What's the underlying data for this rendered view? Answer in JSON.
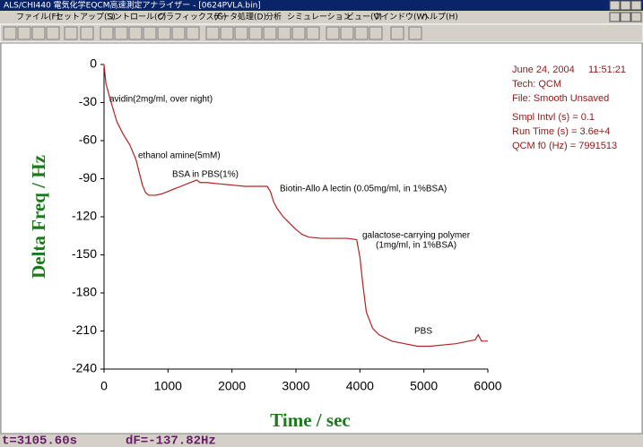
{
  "window": {
    "title": "ALS/CHI440 電気化学EQCM高速測定アナライザー - [0624PVLA.bin]",
    "menu": [
      "ファイル(F)",
      "セットアップ(S)",
      "コントロール(C)",
      "グラフィックス(G)",
      "データ処理(D)",
      "分析",
      "シミュレーション",
      "ビュー(V)",
      "ウインドウ(W)",
      "ヘルプ(H)"
    ]
  },
  "chart_data": {
    "type": "line",
    "xlabel": "Time / sec",
    "ylabel": "Delta Freq / Hz",
    "xlim": [
      0,
      6000
    ],
    "xticks": [
      0,
      1000,
      2000,
      3000,
      4000,
      5000,
      6000
    ],
    "ylim": [
      -240,
      0
    ],
    "yticks": [
      0,
      -30,
      -60,
      -90,
      -120,
      -150,
      -180,
      -210,
      -240
    ],
    "color": "#b22222",
    "grid": false,
    "x": [
      0,
      30,
      100,
      200,
      300,
      400,
      500,
      550,
      600,
      650,
      700,
      800,
      900,
      1000,
      1100,
      1200,
      1300,
      1400,
      1450,
      1500,
      1600,
      1800,
      2000,
      2200,
      2400,
      2550,
      2600,
      2650,
      2700,
      2800,
      2900,
      3000,
      3100,
      3200,
      3400,
      3600,
      3800,
      3950,
      4000,
      4050,
      4100,
      4200,
      4300,
      4500,
      4700,
      4900,
      5100,
      5300,
      5500,
      5700,
      5800,
      5850,
      5900,
      6000
    ],
    "values": [
      0,
      -15,
      -28,
      -45,
      -55,
      -63,
      -75,
      -85,
      -95,
      -101,
      -103,
      -103,
      -102,
      -100,
      -98,
      -96,
      -94,
      -92,
      -91,
      -93,
      -93,
      -94,
      -95,
      -96,
      -96,
      -96,
      -100,
      -108,
      -113,
      -120,
      -125,
      -130,
      -134,
      -136,
      -137,
      -137,
      -137,
      -138,
      -152,
      -175,
      -195,
      -208,
      -213,
      -218,
      -220,
      -222,
      -222,
      -221,
      -220,
      -218,
      -217,
      -213,
      -218,
      -218
    ],
    "annotations": [
      "avidin(2mg/ml, over night)",
      "ethanol amine(5mM)",
      "BSA in PBS(1%)",
      "Biotin-Allo A lectin (0.05mg/ml, in 1%BSA)",
      "galactose-carrying polymer",
      "(1mg/ml, in 1%BSA)",
      "PBS"
    ]
  },
  "info": [
    "June 24, 2004     11:51:21",
    "Tech: QCM",
    "File: Smooth Unsaved",
    "Smpl Intvl (s) = 0.1",
    "Run Time (s) = 3.6e+4",
    "QCM f0 (Hz) = 7991513"
  ],
  "status": {
    "time": "t=3105.60s",
    "freq": "dF=-137.82Hz"
  }
}
